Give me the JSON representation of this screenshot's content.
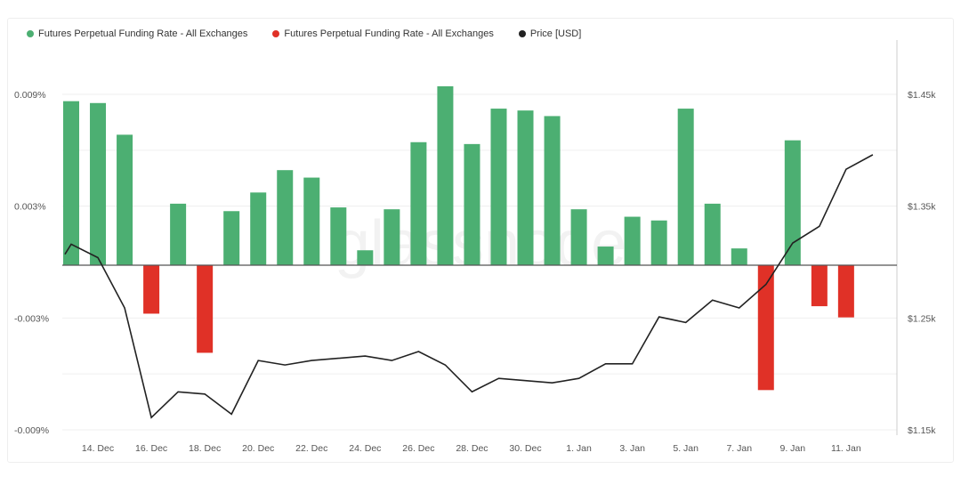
{
  "legend": [
    {
      "label": "Futures Perpetual Funding Rate - All Exchanges",
      "color": "#4caf72"
    },
    {
      "label": "Futures Perpetual Funding Rate - All Exchanges",
      "color": "#e03127"
    },
    {
      "label": "Price [USD]",
      "color": "#222222"
    }
  ],
  "watermark": "glassnode",
  "chart_data": {
    "type": "bar+line",
    "x": [
      "13 Dec",
      "14 Dec",
      "15 Dec",
      "16 Dec",
      "17 Dec",
      "18 Dec",
      "19 Dec",
      "20 Dec",
      "21 Dec",
      "22 Dec",
      "23 Dec",
      "24 Dec",
      "25 Dec",
      "26 Dec",
      "27 Dec",
      "28 Dec",
      "29 Dec",
      "30 Dec",
      "31 Dec",
      "1 Jan",
      "2 Jan",
      "3 Jan",
      "4 Jan",
      "5 Jan",
      "6 Jan",
      "7 Jan",
      "8 Jan",
      "9 Jan",
      "10 Jan",
      "11 Jan",
      "12 Jan"
    ],
    "x_tick_labels": [
      "14. Dec",
      "16. Dec",
      "18. Dec",
      "20. Dec",
      "22. Dec",
      "24. Dec",
      "26. Dec",
      "28. Dec",
      "30. Dec",
      "1. Jan",
      "3. Jan",
      "5. Jan",
      "7. Jan",
      "9. Jan",
      "11. Jan"
    ],
    "funding_rate_percent": [
      0.0088,
      0.0087,
      0.007,
      -0.0026,
      0.0033,
      -0.0047,
      0.0029,
      0.0039,
      0.0051,
      0.0047,
      0.0031,
      0.0008,
      0.003,
      0.0066,
      0.0096,
      0.0065,
      0.0084,
      0.0083,
      0.008,
      0.003,
      0.001,
      0.0026,
      0.0024,
      0.0084,
      0.0033,
      0.0009,
      -0.0067,
      0.0067,
      -0.0022,
      -0.0028,
      null
    ],
    "price_usd_k": [
      1.316,
      1.304,
      1.259,
      1.161,
      1.184,
      1.182,
      1.164,
      1.212,
      1.208,
      1.212,
      1.214,
      1.216,
      1.212,
      1.22,
      1.208,
      1.184,
      1.196,
      1.194,
      1.192,
      1.196,
      1.209,
      1.209,
      1.251,
      1.246,
      1.266,
      1.259,
      1.28,
      1.317,
      1.332,
      1.383,
      1.396
    ],
    "price_start_usd_k": 1.307,
    "left_axis": {
      "ticks": [
        "0.009%",
        "0.003%",
        "-0.003%",
        "-0.009%"
      ],
      "range": [
        -0.009,
        0.009
      ]
    },
    "right_axis": {
      "ticks": [
        "$1.45k",
        "$1.35k",
        "$1.25k",
        "$1.15k"
      ],
      "range": [
        1.15,
        1.45
      ]
    },
    "positive_color": "#4caf72",
    "negative_color": "#e03127",
    "line_color": "#222222",
    "grid": true,
    "legend_position": "top-left"
  }
}
